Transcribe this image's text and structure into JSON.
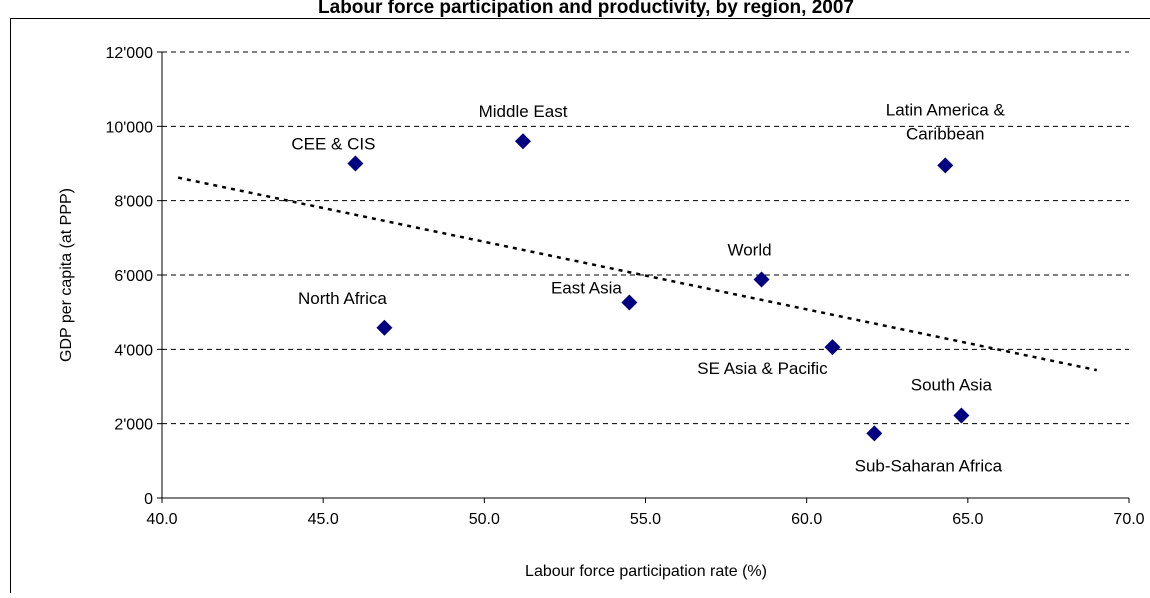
{
  "chart_data": {
    "type": "scatter",
    "title": "Labour force participation and productivity, by region, 2007",
    "xlabel": "Labour force participation rate (%)",
    "ylabel": "GDP per capita (at PPP)",
    "xlim": [
      40.0,
      70.0
    ],
    "ylim": [
      0,
      12000
    ],
    "x_ticks": [
      "40.0",
      "45.0",
      "50.0",
      "55.0",
      "60.0",
      "65.0",
      "70.0"
    ],
    "y_ticks": [
      "0",
      "2'000",
      "4'000",
      "6'000",
      "8'000",
      "10'000",
      "12'000"
    ],
    "grid": "horizontal dashed",
    "marker_color": "#000080",
    "points": [
      {
        "label": "CEE & CIS",
        "x": 46.0,
        "y": 9000
      },
      {
        "label": "Middle East",
        "x": 51.2,
        "y": 9600
      },
      {
        "label": "Latin America & Caribbean",
        "label_lines": [
          "Latin America &",
          "Caribbean"
        ],
        "x": 64.3,
        "y": 8950
      },
      {
        "label": "World",
        "x": 58.6,
        "y": 5880
      },
      {
        "label": "North Africa",
        "x": 46.9,
        "y": 4580
      },
      {
        "label": "East Asia",
        "x": 54.5,
        "y": 5260
      },
      {
        "label": "SE Asia & Pacific",
        "x": 60.8,
        "y": 4060
      },
      {
        "label": "South Asia",
        "x": 64.8,
        "y": 2220
      },
      {
        "label": "Sub-Saharan Africa",
        "x": 62.1,
        "y": 1740
      }
    ],
    "trendline": {
      "style": "dotted",
      "x": [
        40.5,
        69.0
      ],
      "y": [
        8620,
        3440
      ]
    }
  }
}
